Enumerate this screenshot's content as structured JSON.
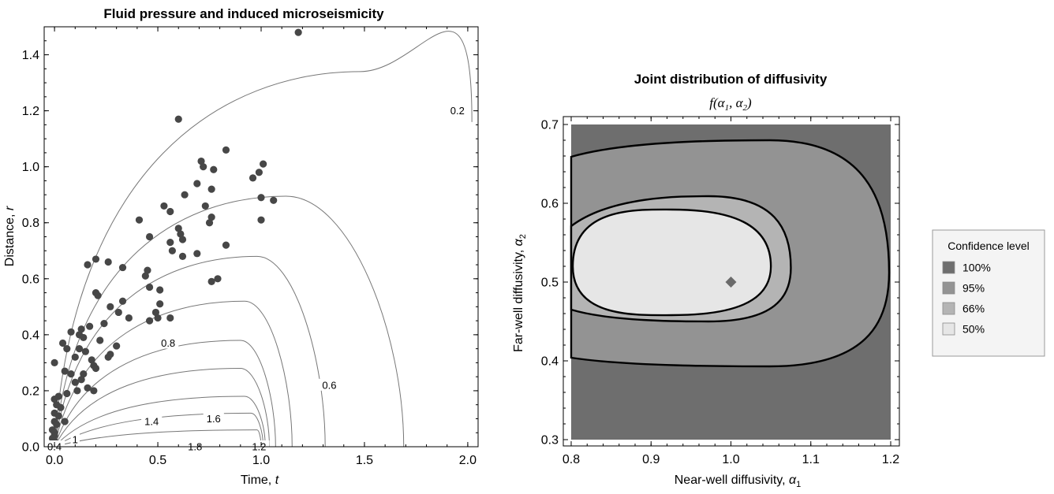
{
  "chart_data": [
    {
      "type": "scatter",
      "title": "Fluid pressure and induced microseismicity",
      "xlabel": "Time, ",
      "xlabel_var": "t",
      "ylabel": "Distance, ",
      "ylabel_var": "r",
      "xlim": [
        -0.05,
        2.05
      ],
      "ylim": [
        0,
        1.5
      ],
      "xticks": [
        "0.0",
        "0.5",
        "1.0",
        "1.5",
        "2.0"
      ],
      "yticks": [
        "0.0",
        "0.2",
        "0.4",
        "0.6",
        "0.8",
        "1.0",
        "1.2",
        "1.4"
      ],
      "contour_labels": [
        {
          "text": "0.2",
          "x": 1.95,
          "y": 1.2
        },
        {
          "text": "0.6",
          "x": 1.33,
          "y": 0.22
        },
        {
          "text": "0.8",
          "x": 0.55,
          "y": 0.37
        },
        {
          "text": "1.4",
          "x": 0.47,
          "y": 0.09
        },
        {
          "text": "1.6",
          "x": 0.77,
          "y": 0.1
        },
        {
          "text": "1.8",
          "x": 0.68,
          "y": 0.0
        },
        {
          "text": "1.2",
          "x": 0.99,
          "y": 0.0
        },
        {
          "text": "1",
          "x": 0.1,
          "y": 0.025
        },
        {
          "text": "0.4",
          "x": 0.0,
          "y": 0.0
        }
      ],
      "contours": [
        {
          "level": 0.2,
          "peak_t": 1.48,
          "peak_r": 1.34,
          "end_t": 2.02,
          "end_r": 1.16
        },
        {
          "level": 0.4,
          "peak_t": 1.12,
          "peak_r": 0.895,
          "end_t": 1.69,
          "end_r": 0
        },
        {
          "level": 0.6,
          "peak_t": 0.98,
          "peak_r": 0.68,
          "end_t": 1.31,
          "end_r": 0
        },
        {
          "level": 0.8,
          "peak_t": 0.92,
          "peak_r": 0.52,
          "end_t": 1.15,
          "end_r": 0
        },
        {
          "level": 1.0,
          "peak_t": 0.9,
          "peak_r": 0.38,
          "end_t": 1.07,
          "end_r": 0
        },
        {
          "level": 1.2,
          "peak_t": 0.9,
          "peak_r": 0.28,
          "end_t": 1.04,
          "end_r": 0
        },
        {
          "level": 1.4,
          "peak_t": 0.92,
          "peak_r": 0.18,
          "end_t": 1.02,
          "end_r": 0
        },
        {
          "level": 1.6,
          "peak_t": 0.95,
          "peak_r": 0.12,
          "end_t": 1.01,
          "end_r": 0
        },
        {
          "level": 1.8,
          "peak_t": 0.98,
          "peak_r": 0.06,
          "end_t": 1.0,
          "end_r": 0
        }
      ],
      "points": [
        [
          1.18,
          1.48
        ],
        [
          0.6,
          1.17
        ],
        [
          0.83,
          1.06
        ],
        [
          0.71,
          1.02
        ],
        [
          0.72,
          1.0
        ],
        [
          0.77,
          0.99
        ],
        [
          1.01,
          1.01
        ],
        [
          0.96,
          0.96
        ],
        [
          0.99,
          0.98
        ],
        [
          0.69,
          0.94
        ],
        [
          0.63,
          0.9
        ],
        [
          0.76,
          0.92
        ],
        [
          1.0,
          0.89
        ],
        [
          1.06,
          0.88
        ],
        [
          0.53,
          0.86
        ],
        [
          0.73,
          0.86
        ],
        [
          0.56,
          0.84
        ],
        [
          0.76,
          0.82
        ],
        [
          1.0,
          0.81
        ],
        [
          0.41,
          0.81
        ],
        [
          0.75,
          0.8
        ],
        [
          0.6,
          0.78
        ],
        [
          0.61,
          0.76
        ],
        [
          0.46,
          0.75
        ],
        [
          0.62,
          0.74
        ],
        [
          0.56,
          0.73
        ],
        [
          0.83,
          0.72
        ],
        [
          0.57,
          0.7
        ],
        [
          0.62,
          0.68
        ],
        [
          0.69,
          0.69
        ],
        [
          0.2,
          0.67
        ],
        [
          0.26,
          0.66
        ],
        [
          0.16,
          0.65
        ],
        [
          0.33,
          0.64
        ],
        [
          0.45,
          0.63
        ],
        [
          0.44,
          0.61
        ],
        [
          0.79,
          0.6
        ],
        [
          0.76,
          0.59
        ],
        [
          0.2,
          0.55
        ],
        [
          0.46,
          0.57
        ],
        [
          0.51,
          0.56
        ],
        [
          0.21,
          0.54
        ],
        [
          0.33,
          0.52
        ],
        [
          0.27,
          0.5
        ],
        [
          0.31,
          0.48
        ],
        [
          0.51,
          0.51
        ],
        [
          0.49,
          0.48
        ],
        [
          0.36,
          0.46
        ],
        [
          0.24,
          0.44
        ],
        [
          0.5,
          0.46
        ],
        [
          0.56,
          0.46
        ],
        [
          0.46,
          0.45
        ],
        [
          0.13,
          0.42
        ],
        [
          0.17,
          0.43
        ],
        [
          0.08,
          0.41
        ],
        [
          0.12,
          0.4
        ],
        [
          0.14,
          0.39
        ],
        [
          0.22,
          0.38
        ],
        [
          0.04,
          0.37
        ],
        [
          0.06,
          0.35
        ],
        [
          0.3,
          0.36
        ],
        [
          0.12,
          0.35
        ],
        [
          0.15,
          0.34
        ],
        [
          0.27,
          0.33
        ],
        [
          0.1,
          0.32
        ],
        [
          0.18,
          0.31
        ],
        [
          0.26,
          0.32
        ],
        [
          0.0,
          0.3
        ],
        [
          0.19,
          0.29
        ],
        [
          0.2,
          0.28
        ],
        [
          0.05,
          0.27
        ],
        [
          0.08,
          0.26
        ],
        [
          0.14,
          0.26
        ],
        [
          0.13,
          0.24
        ],
        [
          0.1,
          0.23
        ],
        [
          0.16,
          0.21
        ],
        [
          0.19,
          0.2
        ],
        [
          0.11,
          0.2
        ],
        [
          0.06,
          0.19
        ],
        [
          0.02,
          0.18
        ],
        [
          0.0,
          0.17
        ],
        [
          0.01,
          0.15
        ],
        [
          0.03,
          0.14
        ],
        [
          0.0,
          0.12
        ],
        [
          0.02,
          0.11
        ],
        [
          0.05,
          0.09
        ],
        [
          0.0,
          0.09
        ],
        [
          0.01,
          0.08
        ],
        [
          -0.01,
          0.06
        ],
        [
          0.0,
          0.05
        ],
        [
          0.0,
          0.04
        ],
        [
          -0.01,
          0.03
        ],
        [
          0.0,
          0.02
        ],
        [
          0.0,
          0.01
        ],
        [
          0.0,
          0.0
        ]
      ]
    },
    {
      "type": "contour",
      "title": "Joint distribution of diffusivity",
      "subtitle": "f(α1, α2)",
      "xlabel": "Near-well diffusivity, ",
      "xlabel_var": "α1",
      "ylabel": "Far-well diffusivity, ",
      "ylabel_var": "α2",
      "xlim": [
        0.8,
        1.2
      ],
      "ylim": [
        0.3,
        0.7
      ],
      "xticks": [
        "0.8",
        "0.9",
        "1.0",
        "1.1",
        "1.2"
      ],
      "yticks": [
        "0.3",
        "0.4",
        "0.5",
        "0.6",
        "0.7"
      ],
      "marker": {
        "x": 1.0,
        "y": 0.5
      },
      "regions": [
        {
          "level": "100%",
          "color": "#6e6e6e"
        },
        {
          "level": "95%",
          "color": "#939393",
          "left_top": 0.659,
          "left_bottom": 0.404,
          "center_y": 0.512,
          "right": 1.198,
          "top": 0.68,
          "bottom": 0.393
        },
        {
          "level": "66%",
          "color": "#b4b4b4",
          "left_top": 0.571,
          "left_bottom": 0.465,
          "center_y": 0.518,
          "right": 1.075,
          "top": 0.609,
          "bottom": 0.45
        },
        {
          "level": "50%",
          "color": "#e6e6e6",
          "left_top": 0.59,
          "left_bottom": 0.455,
          "center_y": 0.52,
          "right": 1.05,
          "top": 0.592,
          "bottom": 0.458
        }
      ],
      "legend": {
        "title": "Confidence level",
        "items": [
          {
            "label": "100%",
            "color": "#6e6e6e"
          },
          {
            "label": "95%",
            "color": "#939393"
          },
          {
            "label": "66%",
            "color": "#b4b4b4"
          },
          {
            "label": "50%",
            "color": "#e6e6e6"
          }
        ]
      }
    }
  ]
}
